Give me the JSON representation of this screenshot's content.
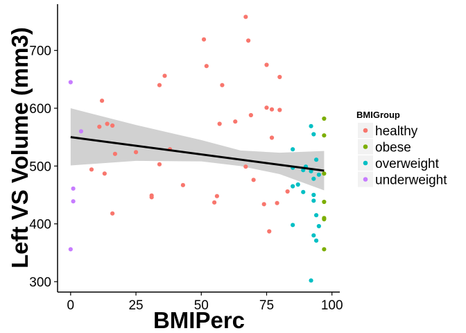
{
  "chart_data": {
    "type": "scatter",
    "title": "",
    "xlabel": "BMIPerc",
    "ylabel": "Left VS Volume (mm3)",
    "xlim": [
      -5,
      103
    ],
    "ylim": [
      282,
      780
    ],
    "x_ticks": [
      0,
      25,
      50,
      75,
      100
    ],
    "x_tick_labels": [
      "0",
      "25",
      "50",
      "75",
      "100"
    ],
    "y_ticks": [
      300,
      400,
      500,
      600,
      700
    ],
    "y_tick_labels": [
      "300",
      "400",
      "500",
      "600",
      "700"
    ],
    "grid": false,
    "legend": {
      "title": "BMIGroup",
      "position": "right"
    },
    "series": [
      {
        "name": "healthy",
        "color": "#F8766D",
        "points": [
          [
            8,
            494
          ],
          [
            11,
            568
          ],
          [
            12,
            613
          ],
          [
            13,
            487
          ],
          [
            14,
            573
          ],
          [
            16,
            570
          ],
          [
            16,
            418
          ],
          [
            17,
            521
          ],
          [
            25,
            524
          ],
          [
            31,
            449
          ],
          [
            31,
            446
          ],
          [
            34,
            503
          ],
          [
            34,
            640
          ],
          [
            36,
            656
          ],
          [
            38,
            529
          ],
          [
            43,
            467
          ],
          [
            51,
            719
          ],
          [
            52,
            673
          ],
          [
            55,
            437
          ],
          [
            56,
            448
          ],
          [
            57,
            573
          ],
          [
            58,
            640
          ],
          [
            63,
            577
          ],
          [
            67,
            758
          ],
          [
            67,
            499
          ],
          [
            68,
            717
          ],
          [
            69,
            588
          ],
          [
            70,
            476
          ],
          [
            74,
            434
          ],
          [
            75,
            675
          ],
          [
            75,
            601
          ],
          [
            76,
            387
          ],
          [
            77,
            598
          ],
          [
            77,
            549
          ],
          [
            79,
            436
          ],
          [
            80,
            654
          ],
          [
            80,
            597
          ],
          [
            83,
            456
          ]
        ]
      },
      {
        "name": "obese",
        "color": "#7CAE00",
        "points": [
          [
            97,
            582
          ],
          [
            97,
            553
          ],
          [
            97,
            487
          ],
          [
            97,
            438
          ],
          [
            97,
            410
          ],
          [
            97,
            408
          ],
          [
            97,
            356
          ]
        ]
      },
      {
        "name": "overweight",
        "color": "#00BFC4",
        "points": [
          [
            85,
            529
          ],
          [
            85,
            497
          ],
          [
            85,
            465
          ],
          [
            85,
            398
          ],
          [
            87,
            468
          ],
          [
            89,
            455
          ],
          [
            89,
            493
          ],
          [
            90,
            499
          ],
          [
            92,
            569
          ],
          [
            92,
            491
          ],
          [
            92,
            302
          ],
          [
            93,
            555
          ],
          [
            93,
            478
          ],
          [
            93,
            450
          ],
          [
            93,
            440
          ],
          [
            93,
            380
          ],
          [
            94,
            415
          ],
          [
            94,
            511
          ],
          [
            95,
            485
          ],
          [
            94,
            371
          ],
          [
            95,
            396
          ]
        ]
      },
      {
        "name": "underweight",
        "color": "#C77CFF",
        "points": [
          [
            0,
            645
          ],
          [
            0,
            356
          ],
          [
            1,
            461
          ],
          [
            1,
            439
          ],
          [
            4,
            560
          ]
        ]
      }
    ],
    "trend_line": {
      "type": "linear",
      "color": "#000000",
      "points": [
        [
          0,
          550
        ],
        [
          97,
          492
        ]
      ]
    },
    "confidence_band": {
      "color": "#999999",
      "upper": [
        [
          0,
          600
        ],
        [
          25,
          571
        ],
        [
          50,
          545
        ],
        [
          65,
          527
        ],
        [
          80,
          523
        ],
        [
          97,
          526
        ]
      ],
      "lower": [
        [
          0,
          501
        ],
        [
          25,
          509
        ],
        [
          50,
          508
        ],
        [
          65,
          500
        ],
        [
          80,
          486
        ],
        [
          97,
          458
        ]
      ]
    }
  }
}
